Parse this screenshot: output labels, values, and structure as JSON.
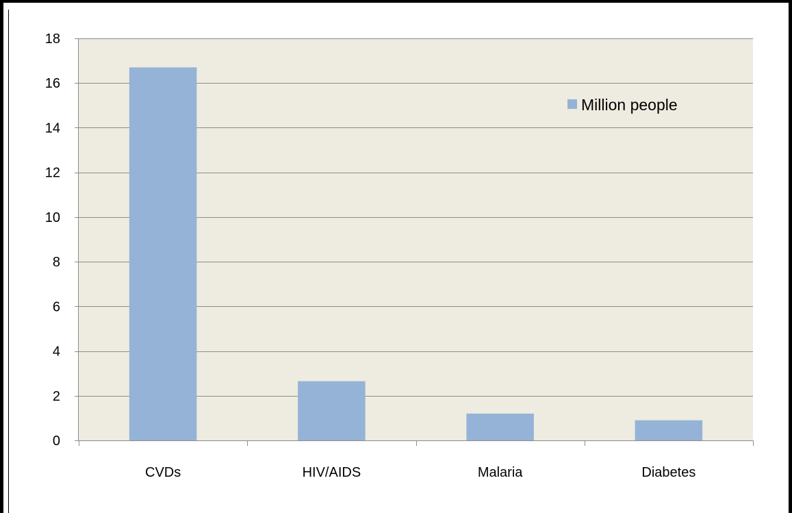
{
  "chart_data": {
    "type": "bar",
    "categories": [
      "CVDs",
      "HIV/AIDS",
      "Malaria",
      "Diabetes"
    ],
    "series": [
      {
        "name": "Million people",
        "values": [
          16.7,
          2.65,
          1.2,
          0.9
        ]
      }
    ],
    "title": "",
    "xlabel": "",
    "ylabel": "",
    "ylim": [
      0,
      18
    ],
    "yticks": [
      0,
      2,
      4,
      6,
      8,
      10,
      12,
      14,
      16,
      18
    ],
    "yticks_text": [
      "0",
      "2",
      "4",
      "6",
      "8",
      "10",
      "12",
      "14",
      "16",
      "18"
    ],
    "grid": true,
    "legend": "top-right",
    "colors": {
      "bar": "#95b3d7",
      "plot_background": "#eeebe0",
      "gridline": "#8c8c8c",
      "axis": "#8c8c8c"
    }
  }
}
